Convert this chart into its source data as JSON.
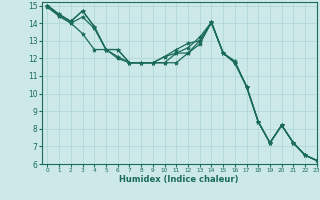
{
  "xlabel": "Humidex (Indice chaleur)",
  "bg_color": "#cce8e8",
  "line_color": "#1a6b5a",
  "grid_color": "#aad4d4",
  "xlim": [
    -0.5,
    23
  ],
  "ylim": [
    6,
    15.2
  ],
  "xticks": [
    0,
    1,
    2,
    3,
    4,
    5,
    6,
    7,
    8,
    9,
    10,
    11,
    12,
    13,
    14,
    15,
    16,
    17,
    18,
    19,
    20,
    21,
    22,
    23
  ],
  "yticks": [
    6,
    7,
    8,
    9,
    10,
    11,
    12,
    13,
    14,
    15
  ],
  "series": [
    [
      15.0,
      14.5,
      14.1,
      14.7,
      13.8,
      12.5,
      12.5,
      11.75,
      11.75,
      11.75,
      11.75,
      11.75,
      12.3,
      12.8,
      14.05,
      12.3,
      11.75,
      10.4,
      8.4,
      7.2,
      8.2,
      7.2,
      6.5,
      6.2
    ],
    [
      15.0,
      14.5,
      14.1,
      14.7,
      13.8,
      12.5,
      12.5,
      11.75,
      11.75,
      11.75,
      11.75,
      12.3,
      12.6,
      13.2,
      14.05,
      12.3,
      11.75,
      10.4,
      8.4,
      7.2,
      8.2,
      7.2,
      6.5,
      6.2
    ],
    [
      15.0,
      14.4,
      14.0,
      14.35,
      13.7,
      12.5,
      12.1,
      11.75,
      11.75,
      11.75,
      12.1,
      12.5,
      12.85,
      13.0,
      14.05,
      12.3,
      11.75,
      10.4,
      8.4,
      7.2,
      8.2,
      7.2,
      6.5,
      6.2
    ],
    [
      14.9,
      14.4,
      14.0,
      13.4,
      12.5,
      12.5,
      12.0,
      11.75,
      11.75,
      11.75,
      12.1,
      12.3,
      12.3,
      13.0,
      14.0,
      12.3,
      11.85,
      10.4,
      8.4,
      7.2,
      8.2,
      7.2,
      6.5,
      6.2
    ]
  ]
}
